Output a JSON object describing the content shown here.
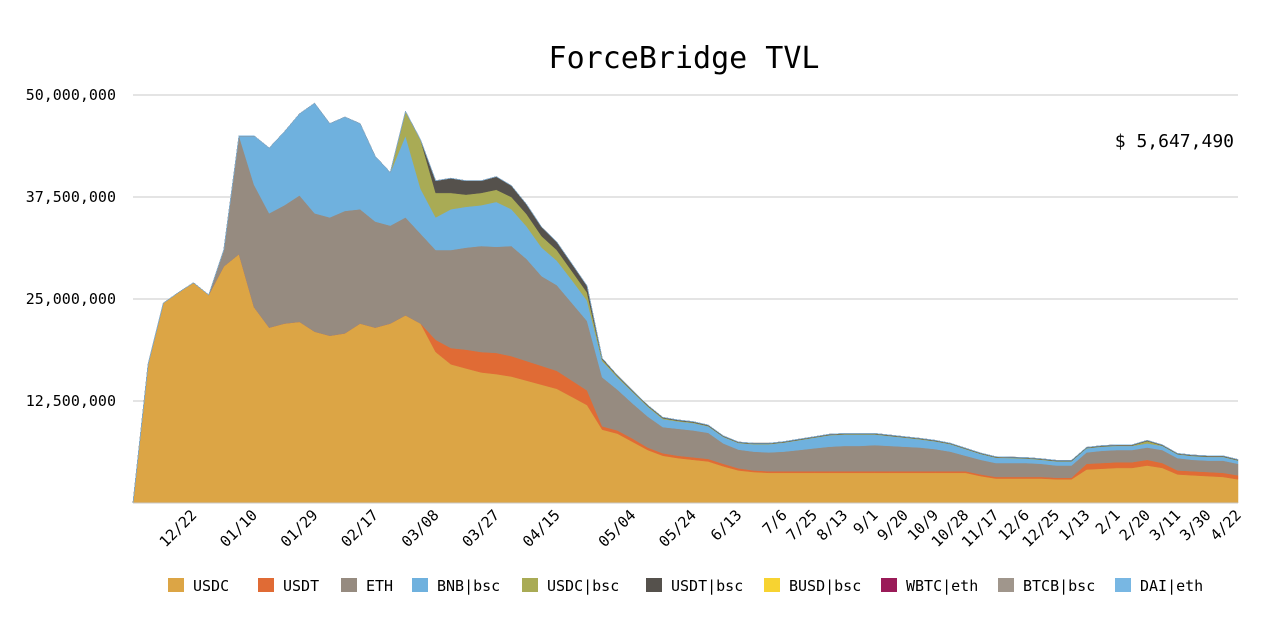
{
  "chart_data": {
    "type": "area",
    "stacked": true,
    "title": "ForceBridge TVL",
    "annotation": "$ 5,647,490",
    "ylim": [
      0,
      50000000
    ],
    "yticks": [
      12500000,
      25000000,
      37500000,
      50000000
    ],
    "ytick_labels": [
      "12,500,000",
      "25,000,000",
      "37,500,000",
      "50,000,000"
    ],
    "grid": true,
    "legend_position": "bottom",
    "x": [
      "11/25",
      "12/1",
      "12/8",
      "12/15",
      "12/22",
      "12/29",
      "01/03",
      "01/07",
      "01/10",
      "01/15",
      "01/20",
      "01/25",
      "01/29",
      "02/03",
      "02/08",
      "02/13",
      "02/17",
      "02/22",
      "02/27",
      "03/03",
      "03/08",
      "03/13",
      "03/18",
      "03/23",
      "03/27",
      "04/01",
      "04/06",
      "04/11",
      "04/15",
      "04/20",
      "04/25",
      "04/28",
      "04/30",
      "05/04",
      "05/09",
      "05/14",
      "05/19",
      "05/24",
      "05/31",
      "6/6",
      "6/13",
      "6/20",
      "6/27",
      "7/6",
      "7/15",
      "7/25",
      "8/3",
      "8/13",
      "8/22",
      "9/1",
      "9/10",
      "9/20",
      "9/29",
      "10/9",
      "10/17",
      "10/28",
      "11/7",
      "11/17",
      "11/26",
      "12/6",
      "12/15",
      "12/25",
      "1/3",
      "1/13",
      "1/22",
      "2/1",
      "2/10",
      "2/20",
      "3/1",
      "3/11",
      "3/20",
      "3/30",
      "4/10",
      "4/22"
    ],
    "xtick_labels": [
      "12/22",
      "01/10",
      "01/29",
      "02/17",
      "03/08",
      "03/27",
      "04/15",
      "05/04",
      "05/24",
      "6/13",
      "7/6",
      "7/25",
      "8/13",
      "9/1",
      "9/20",
      "10/9",
      "10/28",
      "11/17",
      "12/6",
      "12/25",
      "1/13",
      "2/1",
      "2/20",
      "3/11",
      "3/30",
      "4/22"
    ],
    "series": [
      {
        "name": "USDC",
        "color": "#DCA545",
        "values": [
          0,
          17000000,
          24500000,
          25800000,
          27000000,
          25500000,
          29000000,
          30500000,
          24000000,
          21500000,
          22000000,
          22200000,
          21000000,
          20500000,
          20800000,
          22000000,
          21500000,
          22000000,
          23000000,
          22000000,
          18500000,
          17000000,
          16500000,
          16000000,
          15800000,
          15500000,
          15000000,
          14500000,
          14000000,
          13000000,
          12000000,
          9000000,
          8500000,
          7500000,
          6500000,
          5800000,
          5500000,
          5300000,
          5100000,
          4500000,
          4000000,
          3800000,
          3700000,
          3700000,
          3700000,
          3700000,
          3700000,
          3700000,
          3700000,
          3700000,
          3700000,
          3700000,
          3700000,
          3700000,
          3700000,
          3700000,
          3300000,
          3000000,
          3000000,
          3000000,
          3000000,
          2900000,
          2900000,
          4100000,
          4200000,
          4300000,
          4300000,
          4600000,
          4300000,
          3500000,
          3400000,
          3300000,
          3200000,
          2900000
        ]
      },
      {
        "name": "USDT",
        "color": "#E06B35",
        "values": [
          0,
          0,
          0,
          0,
          0,
          0,
          0,
          0,
          0,
          0,
          0,
          0,
          0,
          0,
          0,
          0,
          0,
          0,
          0,
          0,
          1500000,
          2000000,
          2300000,
          2500000,
          2600000,
          2500000,
          2400000,
          2300000,
          2200000,
          2000000,
          1800000,
          400000,
          400000,
          400000,
          300000,
          300000,
          300000,
          300000,
          300000,
          300000,
          250000,
          200000,
          200000,
          200000,
          200000,
          200000,
          200000,
          200000,
          200000,
          200000,
          200000,
          200000,
          200000,
          200000,
          200000,
          200000,
          200000,
          200000,
          200000,
          200000,
          200000,
          200000,
          200000,
          700000,
          700000,
          700000,
          700000,
          700000,
          600000,
          500000,
          500000,
          500000,
          500000,
          500000
        ]
      },
      {
        "name": "ETH",
        "color": "#968B80",
        "values": [
          0,
          0,
          0,
          0,
          0,
          0,
          2000000,
          14500000,
          15000000,
          14000000,
          14500000,
          15500000,
          14500000,
          14500000,
          15000000,
          14000000,
          13000000,
          12000000,
          12000000,
          11000000,
          11000000,
          12000000,
          12500000,
          13000000,
          13000000,
          13500000,
          12500000,
          11000000,
          10500000,
          9500000,
          8500000,
          6000000,
          5000000,
          4300000,
          3800000,
          3200000,
          3300000,
          3300000,
          3200000,
          2500000,
          2300000,
          2300000,
          2300000,
          2400000,
          2600000,
          2800000,
          3000000,
          3100000,
          3100000,
          3200000,
          3100000,
          3000000,
          2900000,
          2700000,
          2400000,
          1900000,
          1800000,
          1700000,
          1700000,
          1700000,
          1600000,
          1500000,
          1500000,
          1400000,
          1500000,
          1500000,
          1500000,
          1500000,
          1600000,
          1500000,
          1400000,
          1400000,
          1500000,
          1400000
        ]
      },
      {
        "name": "BNB|bsc",
        "color": "#6FB1DE",
        "values": [
          0,
          0,
          0,
          0,
          0,
          0,
          0,
          0,
          6000000,
          8000000,
          9000000,
          10000000,
          13500000,
          11500000,
          11500000,
          10500000,
          8000000,
          6500000,
          10000000,
          5500000,
          4000000,
          5000000,
          5000000,
          5000000,
          5500000,
          4500000,
          4000000,
          3500000,
          3000000,
          2800000,
          2500000,
          2000000,
          1500000,
          1400000,
          1200000,
          1000000,
          900000,
          900000,
          800000,
          800000,
          800000,
          900000,
          1000000,
          1100000,
          1200000,
          1300000,
          1400000,
          1400000,
          1400000,
          1300000,
          1200000,
          1100000,
          1000000,
          950000,
          900000,
          800000,
          700000,
          650000,
          600000,
          550000,
          500000,
          500000,
          500000,
          500000,
          500000,
          500000,
          500000,
          500000,
          500000,
          450000,
          450000,
          450000,
          450000,
          400000
        ]
      },
      {
        "name": "USDC|bsc",
        "color": "#A9AB55",
        "values": [
          0,
          0,
          0,
          0,
          0,
          0,
          0,
          0,
          0,
          0,
          0,
          0,
          0,
          0,
          0,
          0,
          0,
          0,
          3000000,
          6000000,
          3000000,
          2000000,
          1500000,
          1500000,
          1500000,
          1500000,
          1500000,
          1400000,
          1300000,
          1100000,
          1000000,
          200000,
          150000,
          100000,
          100000,
          100000,
          80000,
          80000,
          60000,
          50000,
          50000,
          50000,
          50000,
          50000,
          50000,
          50000,
          50000,
          50000,
          50000,
          50000,
          50000,
          50000,
          50000,
          50000,
          50000,
          50000,
          50000,
          50000,
          50000,
          50000,
          50000,
          50000,
          50000,
          50000,
          50000,
          50000,
          50000,
          300000,
          50000,
          50000,
          50000,
          50000,
          50000,
          50000
        ]
      },
      {
        "name": "USDT|bsc",
        "color": "#55514C",
        "values": [
          0,
          0,
          0,
          0,
          0,
          0,
          0,
          0,
          0,
          0,
          0,
          0,
          0,
          0,
          0,
          0,
          0,
          0,
          0,
          0,
          1500000,
          1800000,
          1700000,
          1500000,
          1600000,
          1400000,
          1200000,
          1100000,
          1000000,
          900000,
          800000,
          150000,
          100000,
          100000,
          100000,
          100000,
          100000,
          100000,
          100000,
          80000,
          80000,
          80000,
          80000,
          80000,
          80000,
          80000,
          80000,
          80000,
          80000,
          80000,
          80000,
          80000,
          80000,
          80000,
          80000,
          80000,
          80000,
          80000,
          80000,
          80000,
          80000,
          80000,
          80000,
          80000,
          80000,
          80000,
          80000,
          80000,
          80000,
          80000,
          80000,
          80000,
          80000,
          80000
        ]
      },
      {
        "name": "BUSD|bsc",
        "color": "#F7D331",
        "values": [
          0,
          0,
          0,
          0,
          0,
          0,
          0,
          0,
          0,
          0,
          0,
          0,
          0,
          0,
          0,
          0,
          0,
          0,
          0,
          0,
          0,
          0,
          0,
          0,
          0,
          0,
          0,
          0,
          0,
          0,
          0,
          0,
          0,
          0,
          0,
          0,
          0,
          0,
          0,
          0,
          0,
          0,
          0,
          0,
          0,
          0,
          0,
          0,
          0,
          0,
          0,
          0,
          0,
          0,
          0,
          0,
          0,
          0,
          0,
          0,
          0,
          0,
          0,
          0,
          0,
          0,
          0,
          0,
          0,
          0,
          0,
          0,
          0,
          0
        ]
      },
      {
        "name": "WBTC|eth",
        "color": "#9A1B58",
        "values": [
          0,
          0,
          0,
          0,
          0,
          0,
          0,
          0,
          0,
          0,
          0,
          0,
          0,
          0,
          0,
          0,
          0,
          0,
          0,
          0,
          0,
          0,
          0,
          0,
          0,
          0,
          0,
          0,
          0,
          0,
          0,
          0,
          0,
          0,
          0,
          0,
          0,
          0,
          0,
          0,
          0,
          0,
          0,
          0,
          0,
          0,
          0,
          0,
          0,
          0,
          0,
          0,
          0,
          0,
          0,
          0,
          0,
          0,
          0,
          0,
          0,
          0,
          0,
          0,
          0,
          0,
          0,
          0,
          0,
          0,
          0,
          0,
          0,
          0
        ]
      },
      {
        "name": "BTCB|bsc",
        "color": "#A0968C",
        "values": [
          0,
          0,
          0,
          0,
          0,
          0,
          0,
          0,
          0,
          0,
          0,
          0,
          0,
          0,
          0,
          0,
          0,
          0,
          0,
          0,
          0,
          0,
          0,
          0,
          0,
          0,
          0,
          0,
          0,
          0,
          0,
          0,
          0,
          0,
          0,
          0,
          0,
          0,
          0,
          0,
          0,
          0,
          0,
          0,
          0,
          0,
          0,
          0,
          0,
          0,
          0,
          0,
          0,
          0,
          0,
          0,
          0,
          0,
          0,
          0,
          0,
          0,
          0,
          0,
          0,
          0,
          0,
          0,
          0,
          0,
          0,
          0,
          0,
          0
        ]
      },
      {
        "name": "DAI|eth",
        "color": "#78B7E3",
        "values": [
          0,
          0,
          0,
          0,
          0,
          0,
          0,
          0,
          0,
          0,
          0,
          0,
          0,
          0,
          0,
          0,
          0,
          0,
          0,
          0,
          0,
          0,
          0,
          0,
          0,
          0,
          0,
          0,
          0,
          0,
          0,
          0,
          0,
          0,
          0,
          0,
          0,
          0,
          0,
          0,
          0,
          0,
          0,
          0,
          0,
          0,
          0,
          0,
          0,
          0,
          0,
          0,
          0,
          0,
          0,
          0,
          0,
          0,
          0,
          0,
          0,
          0,
          0,
          0,
          0,
          0,
          0,
          0,
          0,
          0,
          0,
          0,
          0,
          0
        ]
      }
    ]
  }
}
